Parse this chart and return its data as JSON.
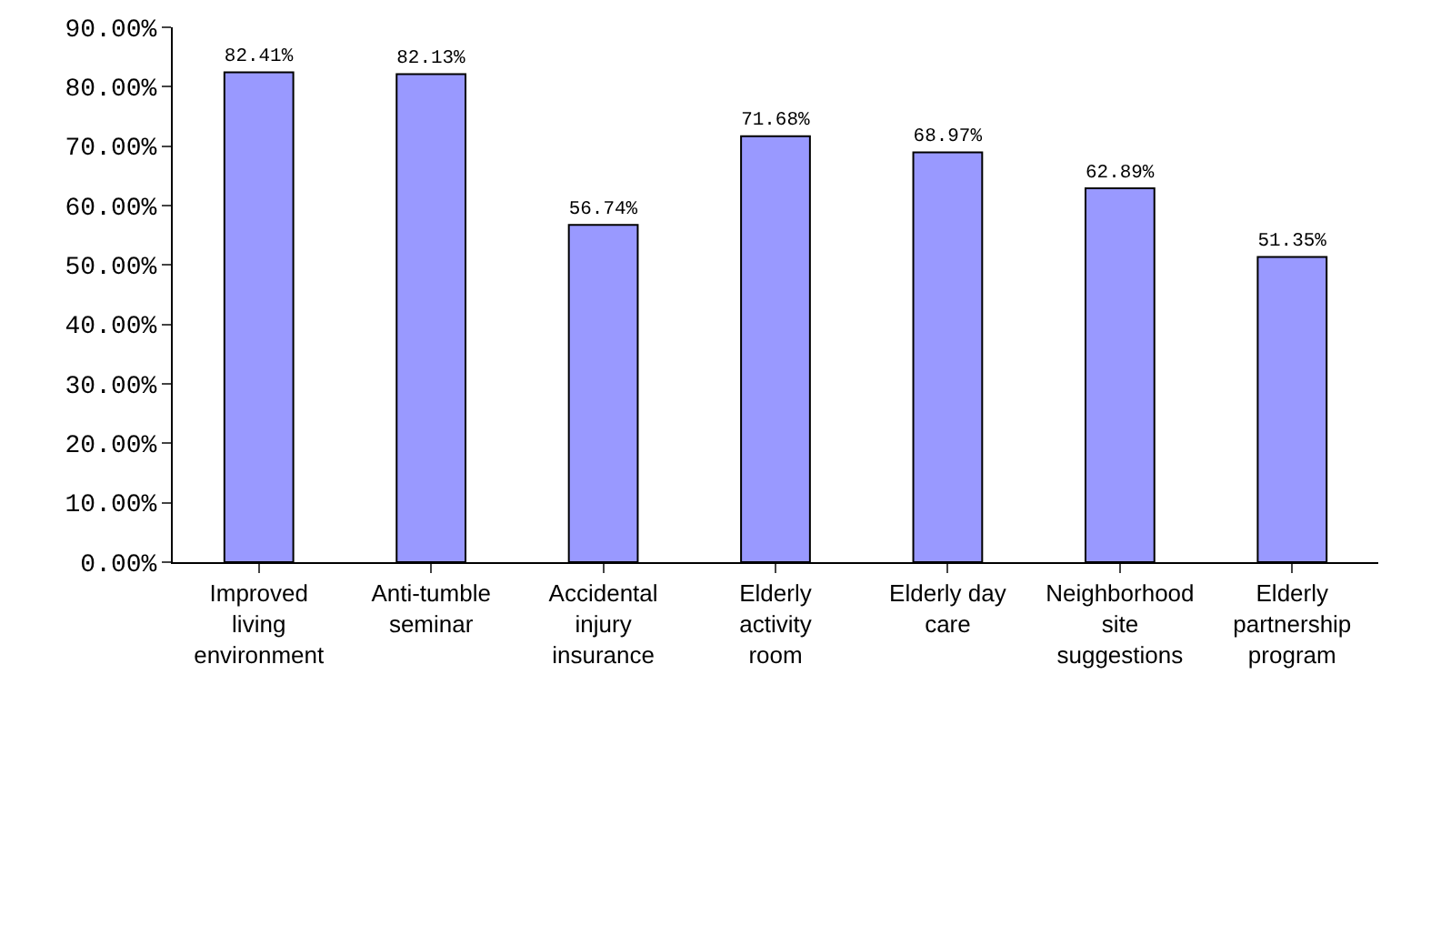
{
  "chart_data": {
    "type": "bar",
    "categories": [
      "Improved living environment",
      "Anti-tumble seminar",
      "Accidental injury insurance",
      "Elderly activity room",
      "Elderly day care",
      "Neighborhood site suggestions",
      "Elderly partnership program"
    ],
    "values": [
      82.41,
      82.13,
      56.74,
      71.68,
      68.97,
      62.89,
      51.35
    ],
    "value_labels": [
      "82.41%",
      "82.13%",
      "56.74%",
      "71.68%",
      "68.97%",
      "62.89%",
      "51.35%"
    ],
    "color": "#9999ff",
    "ylim": [
      0,
      90
    ],
    "yticks": [
      {
        "value": 0,
        "label": "0.00%"
      },
      {
        "value": 10,
        "label": "10.00%"
      },
      {
        "value": 20,
        "label": "20.00%"
      },
      {
        "value": 30,
        "label": "30.00%"
      },
      {
        "value": 40,
        "label": "40.00%"
      },
      {
        "value": 50,
        "label": "50.00%"
      },
      {
        "value": 60,
        "label": "60.00%"
      },
      {
        "value": 70,
        "label": "70.00%"
      },
      {
        "value": 80,
        "label": "80.00%"
      },
      {
        "value": 90,
        "label": "90.00%"
      }
    ],
    "grid": false
  }
}
